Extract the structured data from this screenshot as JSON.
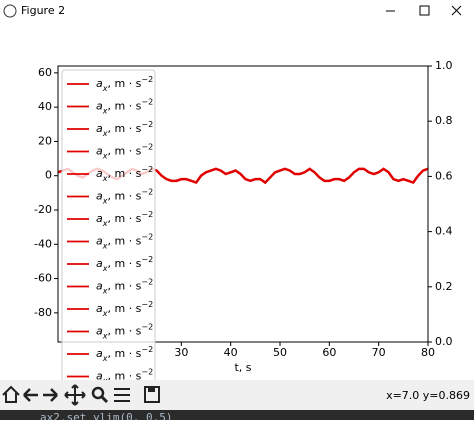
{
  "window": {
    "title": "Figure 2"
  },
  "chart_data": {
    "type": "line",
    "x": [
      5,
      6,
      7,
      8,
      9,
      10,
      11,
      12,
      13,
      14,
      15,
      16,
      17,
      18,
      19,
      20,
      21,
      22,
      23,
      24,
      25,
      26,
      27,
      28,
      29,
      30,
      31,
      32,
      33,
      34,
      35,
      36,
      37,
      38,
      39,
      40,
      41,
      42,
      43,
      44,
      45,
      46,
      47,
      48,
      49,
      50,
      51,
      52,
      53,
      54,
      55,
      56,
      57,
      58,
      59,
      60,
      61,
      62,
      63,
      64,
      65,
      66,
      67,
      68,
      69,
      70,
      71,
      72,
      73,
      74,
      75,
      76,
      77,
      78,
      79,
      80
    ],
    "series": [
      {
        "color": "#e00000",
        "values": [
          2,
          3,
          4,
          2,
          0,
          -1,
          1,
          3,
          4,
          3,
          1,
          -1,
          -2,
          0,
          2,
          4,
          3,
          1,
          2,
          4,
          3,
          0,
          -2,
          -3,
          -3,
          -2,
          -2,
          -3,
          -4,
          0,
          2,
          3,
          4,
          3,
          1,
          2,
          3,
          1,
          -2,
          -3,
          -2,
          -2,
          -4,
          -1,
          2,
          3,
          4,
          3,
          1,
          1,
          2,
          4,
          2,
          -1,
          -3,
          -3,
          -2,
          -2,
          -3,
          -1,
          2,
          4,
          4,
          2,
          1,
          2,
          4,
          2,
          -2,
          -3,
          -2,
          -3,
          -4,
          0,
          3,
          4
        ]
      }
    ],
    "xlim": [
      5,
      80
    ],
    "xticks": [
      30,
      40,
      50,
      60,
      70,
      80
    ],
    "ylim": [
      -97,
      64
    ],
    "yticks": [
      -80,
      -60,
      -40,
      -20,
      0,
      20,
      40,
      60
    ],
    "y2lim": [
      0,
      1
    ],
    "y2ticks": [
      {
        "value": 0,
        "label": "0.0"
      },
      {
        "value": 0.2,
        "label": "0.2"
      },
      {
        "value": 0.4,
        "label": "0.4"
      },
      {
        "value": 0.6,
        "label": "0.6"
      },
      {
        "value": 0.8,
        "label": "0.8"
      },
      {
        "value": 1,
        "label": "1.0"
      }
    ],
    "xlabel": "t, s",
    "legend_color": "#e00000",
    "legend": [
      {
        "symbol": "a",
        "sub": "x",
        "unit": ", m · s",
        "sup": "−2"
      },
      {
        "symbol": "a",
        "sub": "x",
        "unit": ", m · s",
        "sup": "−2"
      },
      {
        "symbol": "a",
        "sub": "x",
        "unit": ", m · s",
        "sup": "−2"
      },
      {
        "symbol": "a",
        "sub": "x",
        "unit": ", m · s",
        "sup": "−2"
      },
      {
        "symbol": "a",
        "sub": "x",
        "unit": ", m · s",
        "sup": "−2"
      },
      {
        "symbol": "a",
        "sub": "x",
        "unit": ", m · s",
        "sup": "−2"
      },
      {
        "symbol": "a",
        "sub": "x",
        "unit": ", m · s",
        "sup": "−2"
      },
      {
        "symbol": "a",
        "sub": "x",
        "unit": ", m · s",
        "sup": "−2"
      },
      {
        "symbol": "a",
        "sub": "x",
        "unit": ", m · s",
        "sup": "−2"
      },
      {
        "symbol": "a",
        "sub": "x",
        "unit": ", m · s",
        "sup": "−2"
      },
      {
        "symbol": "a",
        "sub": "x",
        "unit": ", m · s",
        "sup": "−2"
      },
      {
        "symbol": "a",
        "sub": "x",
        "unit": ", m · s",
        "sup": "−2"
      },
      {
        "symbol": "a",
        "sub": "x",
        "unit": ", m · s",
        "sup": "−2"
      },
      {
        "symbol": "a",
        "sub": "x",
        "unit": ", m · s",
        "sup": "−2"
      }
    ]
  },
  "toolbar": {
    "status": "x=7.0 y=0.869"
  },
  "console": {
    "text": "ax2.set_ylim(0, 0.5)"
  }
}
